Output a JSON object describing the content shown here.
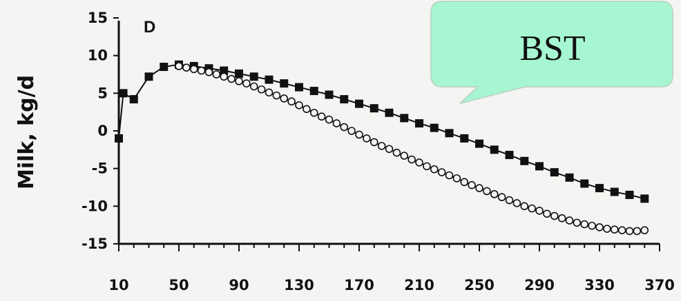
{
  "chart_data": {
    "type": "line",
    "panel_label": "D",
    "ylabel": "Milk, kg/d",
    "xlabel": "",
    "ylim": [
      -15,
      15
    ],
    "xlim": [
      10,
      370
    ],
    "yticks": [
      "15",
      "10",
      "5",
      "0",
      "-5",
      "-10",
      "-15"
    ],
    "xticks": [
      "10",
      "50",
      "90",
      "130",
      "170",
      "210",
      "250",
      "290",
      "330",
      "370"
    ],
    "series": [
      {
        "marker": "filled-square",
        "color": "#111111",
        "x": [
          10,
          13,
          20,
          30,
          40,
          50,
          60,
          70,
          80,
          90,
          100,
          110,
          120,
          130,
          140,
          150,
          160,
          170,
          180,
          190,
          200,
          210,
          220,
          230,
          240,
          250,
          260,
          270,
          280,
          290,
          300,
          310,
          320,
          330,
          340,
          350,
          360
        ],
        "y": [
          -1,
          5,
          4.2,
          7.2,
          8.5,
          8.8,
          8.6,
          8.3,
          8.0,
          7.6,
          7.2,
          6.8,
          6.3,
          5.8,
          5.3,
          4.8,
          4.2,
          3.6,
          3.0,
          2.4,
          1.7,
          1.0,
          0.4,
          -0.3,
          -1.0,
          -1.7,
          -2.5,
          -3.2,
          -4.0,
          -4.7,
          -5.5,
          -6.2,
          -7.0,
          -7.6,
          -8.1,
          -8.5,
          -9.0
        ]
      },
      {
        "marker": "open-circle",
        "color": "#111111",
        "x": [
          50,
          55,
          60,
          65,
          70,
          75,
          80,
          85,
          90,
          95,
          100,
          105,
          110,
          115,
          120,
          125,
          130,
          135,
          140,
          145,
          150,
          155,
          160,
          165,
          170,
          175,
          180,
          185,
          190,
          195,
          200,
          205,
          210,
          215,
          220,
          225,
          230,
          235,
          240,
          245,
          250,
          255,
          260,
          265,
          270,
          275,
          280,
          285,
          290,
          295,
          300,
          305,
          310,
          315,
          320,
          325,
          330,
          335,
          340,
          345,
          350,
          355,
          360
        ],
        "y": [
          8.6,
          8.4,
          8.2,
          8.0,
          7.8,
          7.5,
          7.2,
          6.9,
          6.6,
          6.3,
          5.9,
          5.5,
          5.1,
          4.7,
          4.3,
          3.9,
          3.4,
          2.9,
          2.4,
          1.9,
          1.5,
          1.0,
          0.5,
          0.0,
          -0.5,
          -1.0,
          -1.5,
          -2.0,
          -2.4,
          -2.9,
          -3.3,
          -3.8,
          -4.2,
          -4.7,
          -5.1,
          -5.5,
          -5.9,
          -6.3,
          -6.8,
          -7.2,
          -7.6,
          -8.0,
          -8.4,
          -8.8,
          -9.2,
          -9.6,
          -10.0,
          -10.3,
          -10.6,
          -11.0,
          -11.3,
          -11.6,
          -11.9,
          -12.2,
          -12.4,
          -12.6,
          -12.8,
          -13.0,
          -13.1,
          -13.2,
          -13.3,
          -13.3,
          -13.2
        ]
      }
    ]
  },
  "callout": {
    "text": "BST",
    "fill": "#a6f7d1",
    "stroke": "#b8d8c8"
  }
}
